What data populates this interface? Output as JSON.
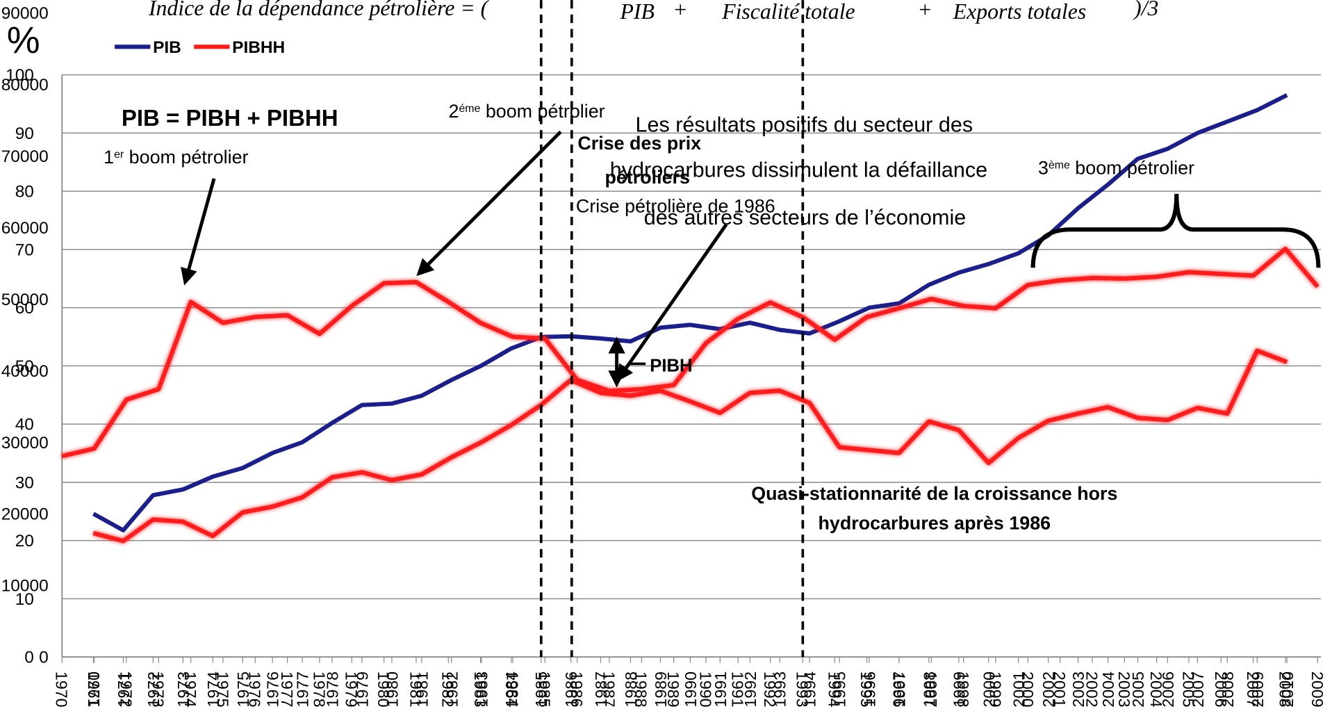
{
  "chart_data": [
    {
      "type": "line",
      "categories": [
        "1970",
        "1971",
        "1972",
        "1973",
        "1974",
        "1975",
        "1976",
        "1977",
        "1978",
        "1979",
        "1980",
        "1981",
        "1982",
        "1983",
        "1984",
        "1985",
        "1986",
        "1987",
        "1988",
        "1989",
        "1990",
        "1991",
        "1992",
        "1993",
        "1994",
        "1995",
        "1996",
        "1997",
        "1998",
        "1999",
        "2000",
        "2001",
        "2002",
        "2003",
        "2004",
        "2005",
        "2006",
        "2007",
        "2008",
        "2009",
        "2010"
      ],
      "series": [
        {
          "name": "PIB",
          "color": "#1a1f8c",
          "values": [
            20000,
            17700,
            22600,
            23400,
            25200,
            26400,
            28500,
            30000,
            32700,
            35200,
            35400,
            36500,
            38700,
            40700,
            43100,
            44700,
            44800,
            44500,
            44100,
            46000,
            46400,
            45800,
            46700,
            45700,
            45200,
            46900,
            48800,
            49400,
            52000,
            53700,
            54900,
            56400,
            58900,
            62700,
            66000,
            69600,
            71000,
            73200,
            74800,
            76400,
            78500
          ]
        },
        {
          "name": "PIBHH",
          "color": "#ff1a1a",
          "values": [
            17300,
            16200,
            19200,
            18900,
            16900,
            20200,
            21000,
            22300,
            25100,
            25800,
            24700,
            25500,
            27900,
            30000,
            32400,
            35200,
            38700,
            36900,
            36500,
            37200,
            35700,
            34100,
            36900,
            37200,
            35500,
            29300,
            28900,
            28500,
            32900,
            31700,
            27100,
            30600,
            33000,
            34000,
            34900,
            33400,
            33100,
            34800,
            34000,
            42800,
            41200
          ]
        }
      ],
      "ylim": [
        0,
        90000
      ],
      "yticks": [
        0,
        10000,
        20000,
        30000,
        40000,
        50000,
        60000,
        70000,
        80000,
        90000
      ],
      "grid": false,
      "legend": "top-left",
      "annotations": {
        "formula": [
          "Indice de la dépendance pétrolière = (",
          "PIB",
          "+",
          "Fiscalité totale",
          "+",
          "Exports totales",
          ")/3"
        ],
        "identity": "PIB = PIBH + PIBHH",
        "boom1": {
          "text": "1",
          "sup": "er",
          "after": " boom pétrolier"
        },
        "boom2": {
          "text": "2",
          "sup": "éme",
          "after": " boom pétrolier"
        },
        "boom3": {
          "text": "3",
          "sup": "ème",
          "after": " boom pétrolier"
        },
        "crisis": [
          "Crise des prix",
          "pétroliers"
        ],
        "crisis1986": "Crise pétrolière de 1986",
        "results": [
          "Les résultats positifs du secteur des",
          "hydrocarbures dissimulent la défaillance",
          "des autres secteurs de l’économie"
        ],
        "pibh": "PIBH",
        "stationary": [
          "Quasi-stationnarité de la croissance hors",
          "hydrocarbures après 1986"
        ]
      }
    },
    {
      "type": "line",
      "y_label": "%",
      "categories": [
        "1970",
        "1971",
        "1972",
        "1973",
        "1974",
        "1975",
        "1976",
        "1977",
        "1978",
        "1979",
        "1980",
        "1981",
        "1982",
        "1983",
        "1984",
        "1985",
        "1986",
        "1987",
        "1988",
        "1989",
        "1990",
        "1991",
        "1992",
        "1993",
        "1994",
        "1995",
        "1996",
        "1997",
        "1998",
        "1999",
        "2000",
        "2001",
        "2002",
        "2003",
        "2004",
        "2005",
        "2006",
        "2007",
        "2008",
        "2009"
      ],
      "series": [
        {
          "color": "#ff1a1a",
          "values": [
            34.5,
            35.8,
            44.2,
            46.0,
            61.0,
            57.4,
            58.4,
            58.7,
            55.5,
            60.3,
            64.2,
            64.4,
            61.0,
            57.4,
            55.0,
            54.7,
            47.6,
            45.7,
            46.0,
            46.7,
            53.9,
            58.1,
            60.9,
            58.4,
            54.5,
            58.4,
            59.9,
            61.5,
            60.3,
            59.9,
            63.9,
            64.7,
            65.1,
            65.0,
            65.3,
            66.1,
            65.8,
            65.5,
            70.1,
            63.6
          ]
        }
      ],
      "ylim": [
        0,
        100
      ],
      "yticks": [
        0,
        10,
        20,
        30,
        40,
        50,
        60,
        70,
        80,
        90,
        100
      ],
      "grid": true
    }
  ]
}
